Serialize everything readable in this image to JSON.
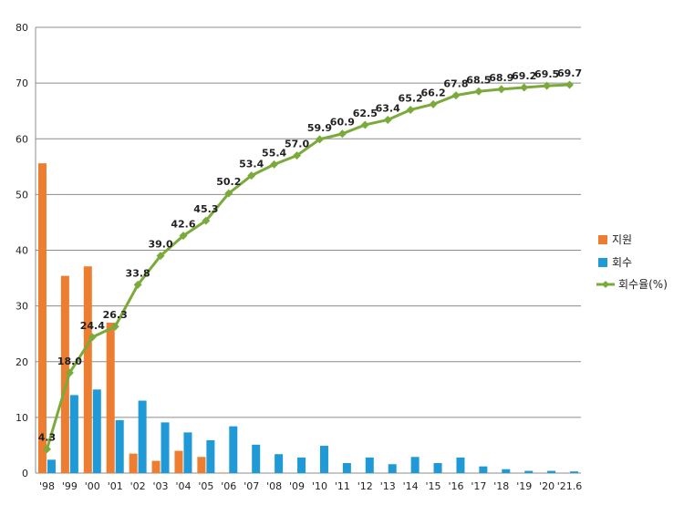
{
  "chart_data": {
    "type": "bar",
    "categories": [
      "'98",
      "'99",
      "'00",
      "'01",
      "'02",
      "'03",
      "'04",
      "'05",
      "'06",
      "'07",
      "'08",
      "'09",
      "'10",
      "'11",
      "'12",
      "'13",
      "'14",
      "'15",
      "'16",
      "'17",
      "'18",
      "'19",
      "'20",
      "'21.6"
    ],
    "ylim": [
      0,
      80
    ],
    "yticks": [
      0,
      10,
      20,
      30,
      40,
      50,
      60,
      70,
      80
    ],
    "grid": true,
    "legend_position": "right",
    "series": [
      {
        "name": "지원",
        "type": "bar",
        "color": "#ed7d31",
        "values": [
          55.6,
          35.4,
          37.1,
          27.0,
          3.5,
          2.2,
          4.0,
          2.9,
          0.1,
          0,
          0,
          0,
          0,
          0,
          0,
          0,
          0,
          0,
          0,
          0,
          0,
          0,
          0,
          0
        ]
      },
      {
        "name": "회수",
        "type": "bar",
        "color": "#1f9ad6",
        "values": [
          2.4,
          14.0,
          15.0,
          9.5,
          13.0,
          9.1,
          7.3,
          5.9,
          8.4,
          5.1,
          3.4,
          2.8,
          4.9,
          1.8,
          2.8,
          1.6,
          2.9,
          1.8,
          2.8,
          1.2,
          0.7,
          0.4,
          0.4,
          0.3
        ]
      },
      {
        "name": "회수율(%)",
        "type": "line",
        "color": "#7aab3a",
        "values": [
          4.3,
          18.0,
          24.4,
          26.3,
          33.8,
          39.0,
          42.6,
          45.3,
          50.2,
          53.4,
          55.4,
          57.0,
          59.9,
          60.9,
          62.5,
          63.4,
          65.2,
          66.2,
          67.8,
          68.5,
          68.9,
          69.2,
          69.5,
          69.7
        ],
        "labels": [
          "4.3",
          "18.0",
          "24.4",
          "26.3",
          "33.8",
          "39.0",
          "42.6",
          "45.3",
          "50.2",
          "53.4",
          "55.4",
          "57.0",
          "59.9",
          "60.9",
          "62.5",
          "63.4",
          "65.2",
          "66.2",
          "67.8",
          "68.5",
          "68.9",
          "69.2",
          "69.5",
          "69.7"
        ]
      }
    ]
  }
}
